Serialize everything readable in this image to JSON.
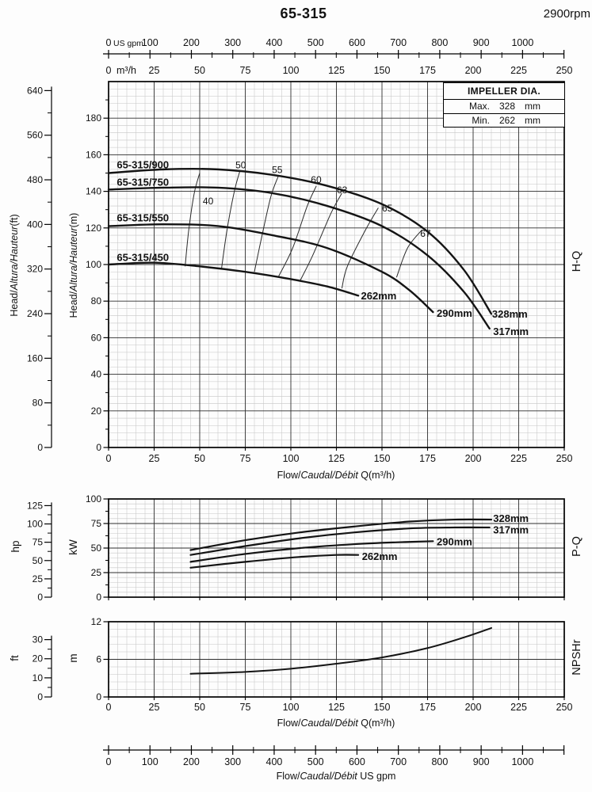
{
  "header": {
    "title": "65-315",
    "rpm": "2900rpm"
  },
  "impeller_box": {
    "title": "IMPELLER DIA.",
    "rows": [
      {
        "label": "Max.",
        "value": "328",
        "unit": "mm"
      },
      {
        "label": "Min.",
        "value": "262",
        "unit": "mm"
      }
    ]
  },
  "flow_axis": {
    "gpm_unit": "US gpm",
    "gpm_labels": [
      "0",
      "100",
      "200",
      "300",
      "400",
      "500",
      "600",
      "700",
      "800",
      "900",
      "1000"
    ],
    "m3h_unit": "m³/h",
    "m3h_zero": "0",
    "m3h_labels": [
      "0",
      "25",
      "50",
      "75",
      "100",
      "125",
      "150",
      "175",
      "200",
      "225",
      "250"
    ],
    "bottom_title": {
      "pre": "Flow/",
      "italic": "Caudal/Débit",
      "post": "  US gpm"
    }
  },
  "chart_data": [
    {
      "id": "hq",
      "type": "line",
      "side_label": "H-Q",
      "x": {
        "label": {
          "pre": "Flow/",
          "italic": "Caudal/Débit",
          "post": " Q(m³/h)"
        },
        "lim": [
          0,
          250
        ],
        "major": 25,
        "minor": 5,
        "tick_labels": [
          "0",
          "25",
          "50",
          "75",
          "100",
          "125",
          "150",
          "175",
          "200",
          "225",
          "250"
        ]
      },
      "y_m": {
        "title": {
          "pre": "Head/",
          "italic": "Altura/Hauteur",
          "post": "(m)"
        },
        "lim": [
          0,
          200
        ],
        "major": 20,
        "tick_labels": [
          "0",
          "20",
          "40",
          "60",
          "80",
          "100",
          "120",
          "140",
          "160",
          "180"
        ]
      },
      "y_ft": {
        "title": {
          "pre": "Head/",
          "italic": "Altura/Hauteur",
          "post": "(ft)"
        },
        "major": 80,
        "tick_labels": [
          "0",
          "80",
          "160",
          "240",
          "320",
          "400",
          "480",
          "560",
          "640"
        ]
      },
      "series": [
        {
          "name": "328mm",
          "curve_label": {
            "text": "65-315/900",
            "q": 4.5,
            "v": 152.5
          },
          "end_label": {
            "text": "328mm",
            "q": 210.4,
            "v": 71
          },
          "points": [
            [
              0,
              150
            ],
            [
              30,
              152
            ],
            [
              60,
              152
            ],
            [
              90,
              149
            ],
            [
              120,
              143
            ],
            [
              150,
              133
            ],
            [
              175,
              118
            ],
            [
              195,
              97
            ],
            [
              210,
              73
            ]
          ]
        },
        {
          "name": "317mm",
          "curve_label": {
            "text": "65-315/750",
            "q": 4.5,
            "v": 143
          },
          "end_label": {
            "text": "317mm",
            "q": 211,
            "v": 61.5
          },
          "points": [
            [
              0,
              141
            ],
            [
              30,
              142
            ],
            [
              60,
              142
            ],
            [
              90,
              139
            ],
            [
              120,
              132
            ],
            [
              150,
              121
            ],
            [
              175,
              105
            ],
            [
              195,
              85
            ],
            [
              209,
              65
            ]
          ]
        },
        {
          "name": "290mm",
          "curve_label": {
            "text": "65-315/550",
            "q": 4.5,
            "v": 123.5
          },
          "end_label": {
            "text": "290mm",
            "q": 180,
            "v": 71.5
          },
          "points": [
            [
              0,
              121
            ],
            [
              30,
              122
            ],
            [
              60,
              121
            ],
            [
              90,
              116
            ],
            [
              120,
              109
            ],
            [
              150,
              96
            ],
            [
              165,
              86
            ],
            [
              178,
              74
            ]
          ]
        },
        {
          "name": "262mm",
          "curve_label": {
            "text": "65-315/450",
            "q": 4.5,
            "v": 102
          },
          "end_label": {
            "text": "262mm",
            "q": 138.5,
            "v": 81
          },
          "points": [
            [
              0,
              100
            ],
            [
              25,
              101
            ],
            [
              50,
              99
            ],
            [
              75,
              96
            ],
            [
              100,
              92
            ],
            [
              120,
              88
            ],
            [
              137,
              83
            ]
          ]
        }
      ],
      "efficiency_lines": [
        {
          "label": "40",
          "label_pos": [
            51.7,
            133
          ],
          "points": [
            [
              50,
              150
            ],
            [
              47,
              139
            ],
            [
              44,
              119
            ],
            [
              42,
              99
            ]
          ]
        },
        {
          "label": "50",
          "label_pos": [
            69.6,
            152.5
          ],
          "points": [
            [
              72,
              151
            ],
            [
              69,
              140
            ],
            [
              65,
              119
            ],
            [
              62,
              98
            ]
          ]
        },
        {
          "label": "55",
          "label_pos": [
            89.6,
            150
          ],
          "points": [
            [
              93,
              148
            ],
            [
              89,
              137
            ],
            [
              84,
              115
            ],
            [
              80,
              96
            ]
          ]
        },
        {
          "label": "60",
          "label_pos": [
            111,
            144.5
          ],
          "points": [
            [
              114,
              143
            ],
            [
              109,
              132
            ],
            [
              101,
              109
            ],
            [
              93,
              93
            ]
          ]
        },
        {
          "label": "63",
          "label_pos": [
            125.2,
            139
          ],
          "points": [
            [
              128,
              139
            ],
            [
              122,
              128
            ],
            [
              112,
              105
            ],
            [
              105,
              91
            ]
          ]
        },
        {
          "label": "65",
          "label_pos": [
            150,
            129
          ],
          "points": [
            [
              148,
              131
            ],
            [
              141,
              119
            ],
            [
              131,
              99
            ],
            [
              128,
              87
            ]
          ]
        },
        {
          "label": "67",
          "label_pos": [
            171,
            115.2
          ],
          "points": [
            [
              172,
              119
            ],
            [
              164,
              109
            ],
            [
              158,
              93
            ]
          ]
        }
      ]
    },
    {
      "id": "pq",
      "type": "line",
      "side_label": "P-Q",
      "y_kw": {
        "unit": "kW",
        "lim": [
          0,
          100
        ],
        "major": 25,
        "tick_labels": [
          "0",
          "25",
          "50",
          "75",
          "100"
        ]
      },
      "y_hp": {
        "unit": "hp",
        "major": 25,
        "tick_labels": [
          "0",
          "25",
          "50",
          "75",
          "100",
          "125"
        ]
      },
      "series": [
        {
          "name": "328mm",
          "end_label": {
            "text": "328mm",
            "q": 211,
            "v": 76.5
          },
          "points": [
            [
              45,
              48
            ],
            [
              75,
              58
            ],
            [
              105,
              66
            ],
            [
              135,
              72
            ],
            [
              165,
              77
            ],
            [
              190,
              79
            ],
            [
              210,
              79
            ]
          ]
        },
        {
          "name": "317mm",
          "end_label": {
            "text": "317mm",
            "q": 211,
            "v": 65
          },
          "points": [
            [
              45,
              43
            ],
            [
              75,
              52
            ],
            [
              105,
              60
            ],
            [
              135,
              66
            ],
            [
              165,
              70
            ],
            [
              190,
              71
            ],
            [
              209,
              71
            ]
          ]
        },
        {
          "name": "290mm",
          "end_label": {
            "text": "290mm",
            "q": 180,
            "v": 53
          },
          "points": [
            [
              45,
              36
            ],
            [
              75,
              44
            ],
            [
              105,
              50
            ],
            [
              135,
              54
            ],
            [
              160,
              56
            ],
            [
              178,
              57
            ]
          ]
        },
        {
          "name": "262mm",
          "end_label": {
            "text": "262mm",
            "q": 139,
            "v": 38
          },
          "points": [
            [
              45,
              30
            ],
            [
              75,
              36
            ],
            [
              105,
              41
            ],
            [
              125,
              43
            ],
            [
              137,
              43
            ]
          ]
        }
      ]
    },
    {
      "id": "npsh",
      "type": "line",
      "side_label": "NPSHr",
      "x": {
        "label": {
          "pre": "Flow/",
          "italic": "Caudal/Débit",
          "post": " Q(m³/h)"
        },
        "lim": [
          0,
          250
        ],
        "major": 25,
        "minor": 5,
        "tick_labels": [
          "0",
          "25",
          "50",
          "75",
          "100",
          "125",
          "150",
          "175",
          "200",
          "225",
          "250"
        ]
      },
      "y_m": {
        "unit": "m",
        "lim": [
          0,
          12
        ],
        "major": 6,
        "tick_labels": [
          "0",
          "6",
          "12"
        ]
      },
      "y_ft": {
        "unit": "ft",
        "major": 10,
        "tick_labels": [
          "0",
          "10",
          "20",
          "30"
        ]
      },
      "series": [
        {
          "name": "NPSHr",
          "points": [
            [
              45,
              3.7
            ],
            [
              75,
              4.0
            ],
            [
              100,
              4.5
            ],
            [
              125,
              5.3
            ],
            [
              150,
              6.3
            ],
            [
              175,
              7.8
            ],
            [
              195,
              9.5
            ],
            [
              210,
              11.0
            ]
          ]
        }
      ]
    }
  ]
}
